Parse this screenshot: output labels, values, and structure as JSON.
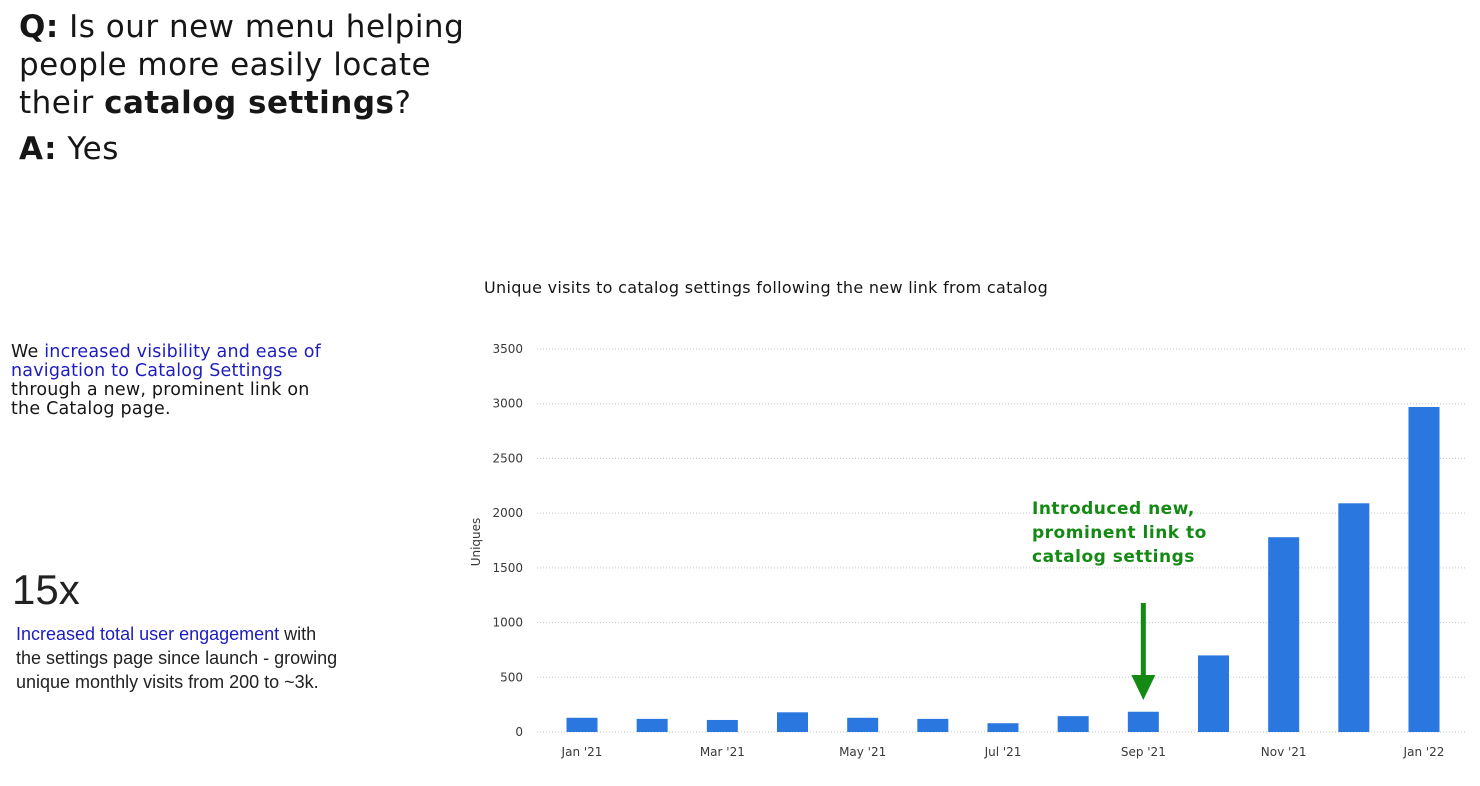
{
  "question": {
    "prefix": "Q:",
    "text_before": " Is our new menu helping people more easily locate their ",
    "highlight": "catalog settings",
    "suffix": "?"
  },
  "answer": {
    "prefix": "A:",
    "text": " Yes"
  },
  "description": {
    "lead": "We ",
    "highlight": "increased visibility and ease of navigation to Catalog Settings",
    "rest": " through a new, prominent link on the Catalog page."
  },
  "stat": {
    "value": "15x",
    "highlight": "Increased total user engagement",
    "rest": " with the settings page since launch - growing unique monthly visits from 200 to ~3k."
  },
  "annotation": "Introduced new, prominent link to catalog settings",
  "colors": {
    "bar": "#2a77e0",
    "annotation": "#148a14",
    "highlight": "#1d1dbf"
  },
  "chart_data": {
    "type": "bar",
    "title": "Unique visits to catalog settings following the new link from catalog",
    "ylabel": "Uniques",
    "xlabel": "",
    "ylim": [
      0,
      3500
    ],
    "yticks": [
      0,
      500,
      1000,
      1500,
      2000,
      2500,
      3000,
      3500
    ],
    "grid": true,
    "categories": [
      "Jan '21",
      "Feb '21",
      "Mar '21",
      "Apr '21",
      "May '21",
      "Jun '21",
      "Jul '21",
      "Aug '21",
      "Sep '21",
      "Oct '21",
      "Nov '21",
      "Dec '21",
      "Jan '22"
    ],
    "x_tick_labels": [
      "Jan '21",
      "",
      "Mar '21",
      "",
      "May '21",
      "",
      "Jul '21",
      "",
      "Sep '21",
      "",
      "Nov '21",
      "",
      "Jan '22"
    ],
    "values": [
      130,
      120,
      110,
      180,
      130,
      120,
      80,
      145,
      185,
      700,
      1780,
      2090,
      2970
    ],
    "annotation_arrow_at": "Sep '21"
  }
}
